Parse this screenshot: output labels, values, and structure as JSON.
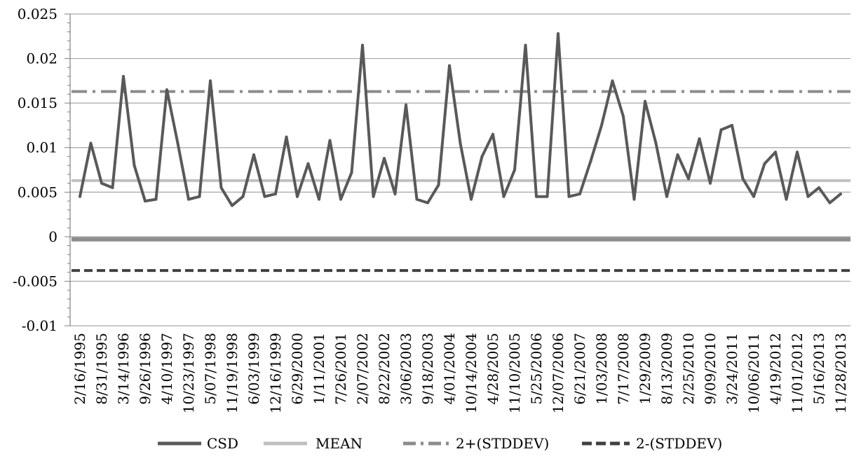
{
  "chart_data": {
    "type": "line",
    "title": "",
    "xlabel": "",
    "ylabel": "",
    "ylim": [
      -0.01,
      0.025
    ],
    "y_ticks": [
      "0.025",
      "0.02",
      "0.015",
      "0.01",
      "0.005",
      "0",
      "-0.005",
      "-0.01"
    ],
    "y_tick_values": [
      0.025,
      0.02,
      0.015,
      0.01,
      0.005,
      0,
      -0.005,
      -0.01
    ],
    "x_tick_labels": [
      "2/16/1995",
      "8/31/1995",
      "3/14/1996",
      "9/26/1996",
      "4/10/1997",
      "10/23/1997",
      "5/07/1998",
      "11/19/1998",
      "6/03/1999",
      "12/16/1999",
      "6/29/2000",
      "1/11/2001",
      "7/26/2001",
      "2/07/2002",
      "8/22/2002",
      "3/06/2003",
      "9/18/2003",
      "4/01/2004",
      "10/14/2004",
      "4/28/2005",
      "11/10/2005",
      "5/25/2006",
      "12/07/2006",
      "6/21/2007",
      "1/03/2008",
      "7/17/2008",
      "1/29/2009",
      "8/13/2009",
      "2/25/2010",
      "9/09/2010",
      "3/24/2011",
      "10/06/2011",
      "4/19/2012",
      "11/01/2012",
      "5/16/2013",
      "11/28/2013"
    ],
    "grid": true,
    "legend_position": "bottom",
    "series": [
      {
        "name": "CSD",
        "color": "#595959",
        "style": "solid",
        "x": [
          "2/16/1995",
          "5/25/1995",
          "8/31/1995",
          "12/07/1995",
          "3/14/1996",
          "6/20/1996",
          "9/26/1996",
          "1/02/1997",
          "4/10/1997",
          "7/17/1997",
          "10/23/1997",
          "1/29/1998",
          "5/07/1998",
          "8/13/1998",
          "11/19/1998",
          "2/25/1999",
          "6/03/1999",
          "9/09/1999",
          "12/16/1999",
          "3/23/2000",
          "6/29/2000",
          "10/05/2000",
          "1/11/2001",
          "4/19/2001",
          "7/26/2001",
          "11/01/2001",
          "2/07/2002",
          "5/16/2002",
          "8/22/2002",
          "11/28/2002",
          "3/06/2003",
          "6/12/2003",
          "9/18/2003",
          "12/25/2003",
          "4/01/2004",
          "7/08/2004",
          "10/14/2004",
          "1/20/2005",
          "4/28/2005",
          "8/04/2005",
          "11/10/2005",
          "2/16/2006",
          "5/25/2006",
          "8/31/2006",
          "12/07/2006",
          "3/15/2007",
          "6/21/2007",
          "9/27/2007",
          "1/03/2008",
          "4/10/2008",
          "7/17/2008",
          "10/23/2008",
          "1/29/2009",
          "5/07/2009",
          "8/13/2009",
          "11/19/2009",
          "2/25/2010",
          "6/03/2010",
          "9/09/2010",
          "12/16/2010",
          "3/24/2011",
          "6/30/2011",
          "10/06/2011",
          "1/12/2012",
          "4/19/2012",
          "7/26/2012",
          "11/01/2012",
          "2/07/2013",
          "5/16/2013",
          "8/22/2013",
          "11/28/2013"
        ],
        "values": [
          0.0045,
          0.0105,
          0.006,
          0.0055,
          0.018,
          0.008,
          0.004,
          0.0042,
          0.0165,
          0.0105,
          0.0042,
          0.0045,
          0.0175,
          0.0055,
          0.0035,
          0.0045,
          0.0092,
          0.0045,
          0.0048,
          0.0112,
          0.0045,
          0.0082,
          0.0042,
          0.0108,
          0.0042,
          0.0072,
          0.0215,
          0.0045,
          0.0088,
          0.0048,
          0.0148,
          0.0042,
          0.0038,
          0.0058,
          0.0192,
          0.0105,
          0.0042,
          0.009,
          0.0115,
          0.0045,
          0.0075,
          0.0215,
          0.0045,
          0.0045,
          0.0228,
          0.0045,
          0.0048,
          0.0085,
          0.0125,
          0.0175,
          0.0135,
          0.0042,
          0.0152,
          0.0105,
          0.0045,
          0.0092,
          0.0065,
          0.011,
          0.006,
          0.012,
          0.0125,
          0.0065,
          0.0045,
          0.0082,
          0.0095,
          0.0042,
          0.0095,
          0.0045,
          0.0055,
          0.0038,
          0.0048
        ]
      },
      {
        "name": "MEAN",
        "color": "#bfbfbf",
        "style": "solid",
        "value": 0.0063
      },
      {
        "name": "2+(STDDEV)",
        "color": "#8c8c8c",
        "style": "dash-dot",
        "value": 0.0163
      },
      {
        "name": "2-(STDDEV)",
        "color": "#404040",
        "style": "dashed",
        "value": -0.0038
      }
    ],
    "zero_line": {
      "value": -0.0003,
      "color": "#8c8c8c"
    }
  }
}
